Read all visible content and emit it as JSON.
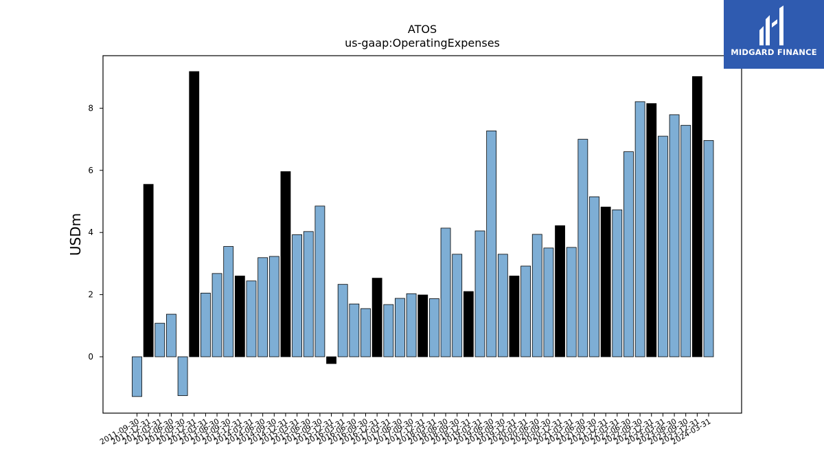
{
  "chart_data": {
    "type": "bar",
    "title": "ATOS",
    "subtitle": "us-gaap:OperatingExpenses",
    "xlabel": "",
    "ylabel": "USDm",
    "ylim": [
      -1.8,
      9.7
    ],
    "yticks": [
      0,
      2,
      4,
      6,
      8
    ],
    "grid": false,
    "legend": "none",
    "colors": {
      "quarter": "#7eaed5",
      "year_end": "#000000",
      "edge": "#000000"
    },
    "categories": [
      "2011-09-30",
      "2011-12-31",
      "2012-03-31",
      "2012-06-30",
      "2012-09-30",
      "2012-12-31",
      "2013-03-31",
      "2013-06-30",
      "2013-09-30",
      "2013-12-31",
      "2014-03-31",
      "2014-06-30",
      "2014-09-30",
      "2014-12-31",
      "2015-03-31",
      "2015-06-30",
      "2015-09-30",
      "2015-12-31",
      "2016-03-31",
      "2016-06-30",
      "2016-09-30",
      "2016-12-31",
      "2017-03-31",
      "2017-06-30",
      "2017-09-30",
      "2017-12-31",
      "2018-03-31",
      "2018-06-30",
      "2018-09-30",
      "2018-12-31",
      "2019-03-31",
      "2019-06-30",
      "2019-09-30",
      "2019-12-31",
      "2020-03-31",
      "2020-06-30",
      "2020-09-30",
      "2020-12-31",
      "2021-03-31",
      "2021-06-30",
      "2021-09-30",
      "2021-12-31",
      "2022-03-31",
      "2022-06-30",
      "2022-09-30",
      "2022-12-31",
      "2023-03-31",
      "2023-06-30",
      "2023-09-30",
      "2023-12-31",
      "2024-03-31"
    ],
    "values": [
      -1.28,
      5.55,
      1.08,
      1.37,
      -1.25,
      9.18,
      2.05,
      2.68,
      3.55,
      2.6,
      2.44,
      3.19,
      3.23,
      5.96,
      3.93,
      4.03,
      4.85,
      -0.22,
      2.33,
      1.7,
      1.55,
      2.53,
      1.68,
      1.88,
      2.03,
      1.99,
      1.87,
      4.14,
      3.3,
      2.1,
      4.05,
      7.27,
      3.3,
      2.6,
      2.92,
      3.94,
      3.5,
      4.22,
      3.52,
      7.0,
      5.15,
      4.82,
      4.73,
      6.6,
      8.21,
      8.15,
      7.1,
      7.79,
      7.45,
      9.02,
      6.96
    ],
    "year_end": [
      false,
      true,
      false,
      false,
      false,
      true,
      false,
      false,
      false,
      true,
      false,
      false,
      false,
      true,
      false,
      false,
      false,
      true,
      false,
      false,
      false,
      true,
      false,
      false,
      false,
      true,
      false,
      false,
      false,
      true,
      false,
      false,
      false,
      true,
      false,
      false,
      false,
      true,
      false,
      false,
      false,
      true,
      false,
      false,
      false,
      true,
      false,
      false,
      false,
      true,
      false
    ]
  },
  "logo": {
    "text": "MIDGARD FINANCE",
    "color": "#2f5bb0"
  }
}
